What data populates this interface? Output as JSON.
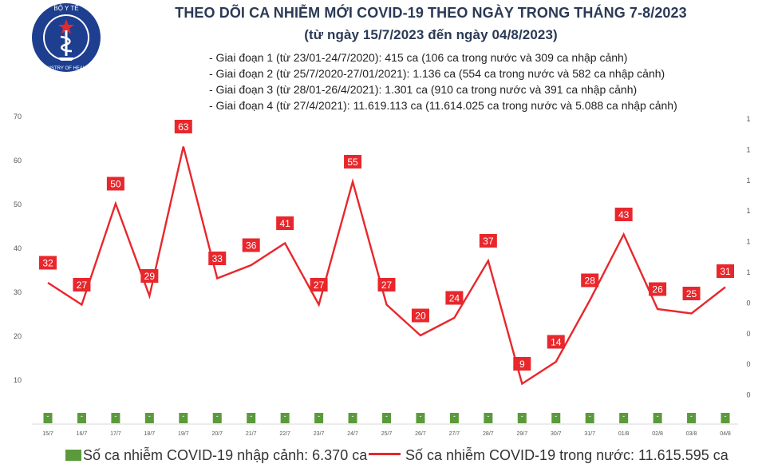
{
  "logo": {
    "top_text": "BỘ Y TẾ",
    "bottom_text": "MINISTRY OF HEALTH"
  },
  "title": {
    "line1": "THEO DÕI CA NHIỄM MỚI COVID-19 THEO NGÀY TRONG THÁNG 7-8/2023",
    "line2": "(từ ngày 15/7/2023 đến ngày 04/8/2023)"
  },
  "phases": [
    "- Giai đoạn 1 (từ 23/01-24/7/2020): 415 ca (106 ca trong nước và 309 ca nhập cảnh)",
    "- Giai đoạn 2 (từ 25/7/2020-27/01/2021): 1.136 ca (554 ca trong nước và 582 ca nhập cảnh)",
    "- Giai đoạn 3 (từ 28/01-26/4/2021): 1.301 ca (910 ca trong nước và 391 ca nhập cảnh)",
    "- Giai đoạn 4 (từ 27/4/2021): 11.619.113 ca (11.614.025 ca trong nước và 5.088 ca nhập cảnh)"
  ],
  "colors": {
    "line": "#e8272c",
    "bar": "#5b9a3b",
    "title": "#2b3a55",
    "axis_text": "#555555"
  },
  "chart_data": {
    "type": "line",
    "x": [
      "15/7",
      "16/7",
      "17/7",
      "18/7",
      "19/7",
      "20/7",
      "21/7",
      "22/7",
      "23/7",
      "24/7",
      "25/7",
      "26/7",
      "27/7",
      "28/7",
      "29/7",
      "30/7",
      "31/7",
      "01/8",
      "02/8",
      "03/8",
      "04/8"
    ],
    "series": [
      {
        "name": "Số ca nhiễm COVID-19 trong nước: 11.615.595 ca",
        "kind": "line",
        "values": [
          32,
          27,
          50,
          29,
          63,
          33,
          36,
          41,
          27,
          55,
          27,
          20,
          24,
          37,
          9,
          14,
          28,
          43,
          26,
          25,
          31
        ]
      },
      {
        "name": "Số ca nhiễm COVID-19 nhập cảnh: 6.370 ca",
        "kind": "bar",
        "values": [
          0,
          0,
          0,
          0,
          0,
          0,
          0,
          0,
          0,
          0,
          0,
          0,
          0,
          0,
          0,
          0,
          0,
          0,
          0,
          0,
          0
        ],
        "labels": [
          "-",
          "-",
          "-",
          "-",
          "-",
          "-",
          "-",
          "-",
          "-",
          "-",
          "-",
          "-",
          "-",
          "-",
          "-",
          "-",
          "-",
          "-",
          "-",
          "-",
          "-"
        ]
      }
    ],
    "left_ticks": [
      "70",
      "60",
      "50",
      "40",
      "30",
      "20",
      "10"
    ],
    "right_ticks": [
      "1",
      "1",
      "1",
      "1",
      "1",
      "1",
      "0",
      "0",
      "0",
      "0"
    ],
    "ylim": [
      0,
      70
    ],
    "legend_position": "bottom"
  }
}
